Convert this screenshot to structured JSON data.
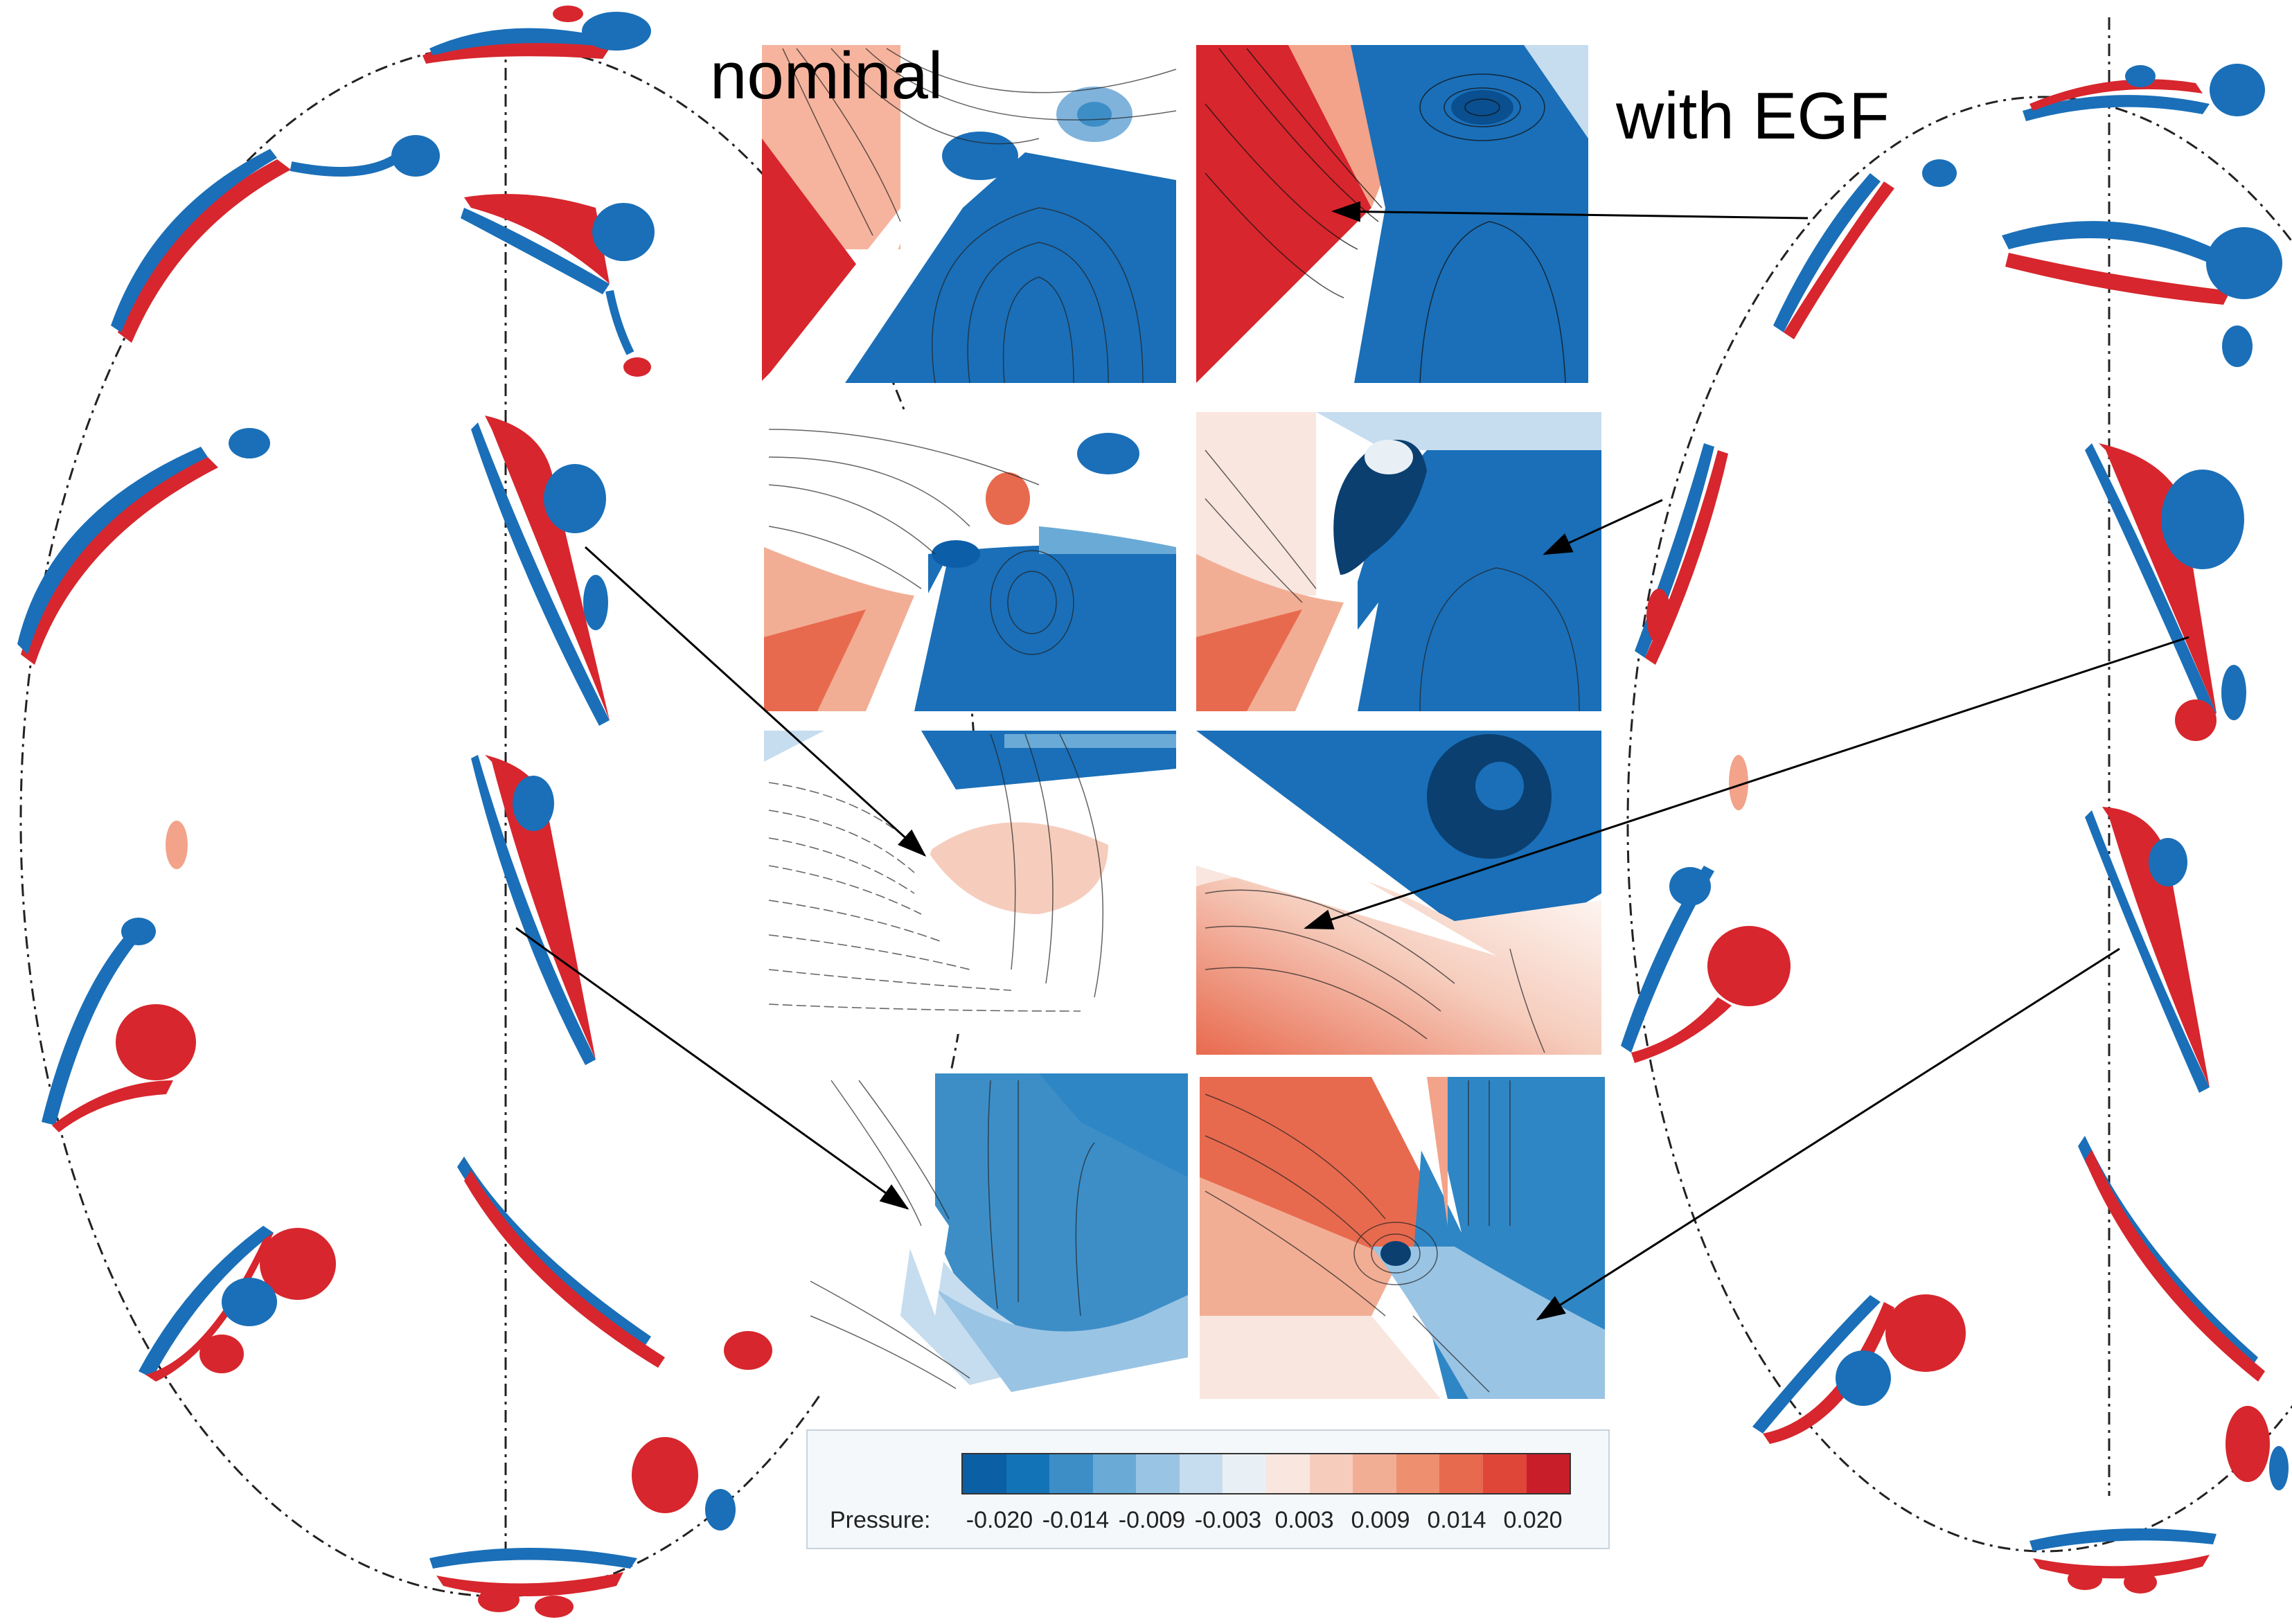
{
  "labels": {
    "nominal": "nominal",
    "egf": "with EGF"
  },
  "colorbar": {
    "title": "Pressure:",
    "ticks": [
      "-0.020",
      "-0.014",
      "-0.009",
      "-0.003",
      "0.003",
      "0.009",
      "0.014",
      "0.020"
    ],
    "colors": [
      "#0b5fa5",
      "#1273b6",
      "#3d8ec7",
      "#6aaad6",
      "#9ac4e4",
      "#c6ddef",
      "#e8f0f6",
      "#f8e6df",
      "#f6cdbd",
      "#f2ae95",
      "#ee8f6f",
      "#e86a4e",
      "#df4637",
      "#c81e2a"
    ]
  },
  "colors": {
    "blue": "#1a6fb8",
    "red": "#d7262d",
    "dark_blue": "#0d5ea8",
    "light_red": "#f2a38a"
  }
}
